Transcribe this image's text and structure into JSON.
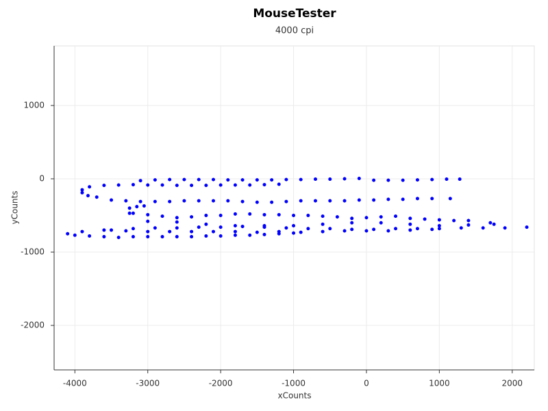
{
  "chart_data": {
    "type": "scatter",
    "title": "MouseTester",
    "subtitle": "4000 cpi",
    "x_label": "xCounts",
    "y_label": "yCounts",
    "color": "#0000ff",
    "grid": true,
    "xlim": [
      -4285,
      2303
    ],
    "ylim": [
      -2607,
      1813
    ],
    "xticks": [
      -4000,
      -3000,
      -2000,
      -1000,
      0,
      1000,
      2000
    ],
    "yticks": [
      -2000,
      -1000,
      0,
      1000
    ],
    "x": [
      -3100,
      -2900,
      -2700,
      -2500,
      -2300,
      -2100,
      -1900,
      -1700,
      -1500,
      -1300,
      -1100,
      -900,
      -700,
      -500,
      -300,
      -100,
      100,
      300,
      500,
      700,
      900,
      1100,
      1280,
      -3800,
      -3600,
      -3400,
      -3200,
      -3000,
      -2800,
      -2600,
      -2400,
      -2200,
      -2000,
      -1800,
      -1600,
      -1400,
      -1200,
      -3900,
      -3900,
      -3820,
      -3700,
      -3500,
      -3300,
      -3100,
      -2900,
      -2700,
      -2500,
      -2300,
      -2100,
      -1900,
      -1700,
      -1500,
      -1300,
      -1100,
      -900,
      -700,
      -500,
      -300,
      -100,
      100,
      300,
      500,
      700,
      900,
      1150,
      -3250,
      -3150,
      -3050,
      -3250,
      -3200,
      -3000,
      -2800,
      -2600,
      -2400,
      -2200,
      -2000,
      -1800,
      -1600,
      -1400,
      -1200,
      -1000,
      -800,
      -600,
      -400,
      -200,
      0,
      200,
      400,
      600,
      800,
      1000,
      1200,
      1400,
      1700,
      -3000,
      -2600,
      -2200,
      -1800,
      -1400,
      -1000,
      -600,
      -200,
      200,
      600,
      1000,
      1400,
      1750,
      -3500,
      -3200,
      -2900,
      -2600,
      -2300,
      -2000,
      -1700,
      -1400,
      -1100,
      -800,
      -500,
      -200,
      100,
      400,
      700,
      1000,
      1300,
      1600,
      1900,
      2200,
      -4100,
      -3900,
      -3600,
      -3300,
      -3000,
      -2700,
      -2400,
      -2100,
      -1800,
      -1500,
      -1200,
      -900,
      -600,
      -300,
      0,
      300,
      600,
      900,
      -4000,
      -3800,
      -3600,
      -3400,
      -3200,
      -3000,
      -2800,
      -2600,
      -2400,
      -2200,
      -2000,
      -1800,
      -1600,
      -1400,
      -1200,
      -1000
    ],
    "y": [
      -25,
      -15,
      -10,
      -10,
      -10,
      -10,
      -15,
      -15,
      -15,
      -15,
      -10,
      -10,
      -5,
      -5,
      0,
      5,
      -20,
      -20,
      -20,
      -15,
      -10,
      -5,
      -5,
      -110,
      -90,
      -85,
      -80,
      -85,
      -85,
      -90,
      -90,
      -90,
      -85,
      -85,
      -85,
      -80,
      -75,
      -150,
      -190,
      -230,
      -250,
      -290,
      -300,
      -310,
      -310,
      -310,
      -300,
      -300,
      -300,
      -300,
      -310,
      -320,
      -320,
      -310,
      -300,
      -300,
      -300,
      -300,
      -290,
      -290,
      -280,
      -280,
      -270,
      -270,
      -270,
      -400,
      -380,
      -370,
      -470,
      -470,
      -490,
      -510,
      -530,
      -520,
      -500,
      -500,
      -480,
      -480,
      -490,
      -490,
      -500,
      -500,
      -510,
      -520,
      -540,
      -530,
      -520,
      -510,
      -540,
      -550,
      -560,
      -570,
      -570,
      -600,
      -580,
      -590,
      -620,
      -640,
      -640,
      -640,
      -620,
      -600,
      -600,
      -620,
      -640,
      -630,
      -620,
      -700,
      -680,
      -670,
      -670,
      -660,
      -660,
      -650,
      -660,
      -670,
      -680,
      -680,
      -690,
      -690,
      -680,
      -680,
      -680,
      -670,
      -670,
      -670,
      -660,
      -750,
      -720,
      -700,
      -710,
      -720,
      -720,
      -720,
      -720,
      -720,
      -730,
      -720,
      -730,
      -720,
      -710,
      -710,
      -710,
      -700,
      -690,
      -770,
      -780,
      -790,
      -800,
      -790,
      -790,
      -790,
      -790,
      -790,
      -780,
      -780,
      -770,
      -770,
      -760,
      -750,
      -740
    ]
  }
}
